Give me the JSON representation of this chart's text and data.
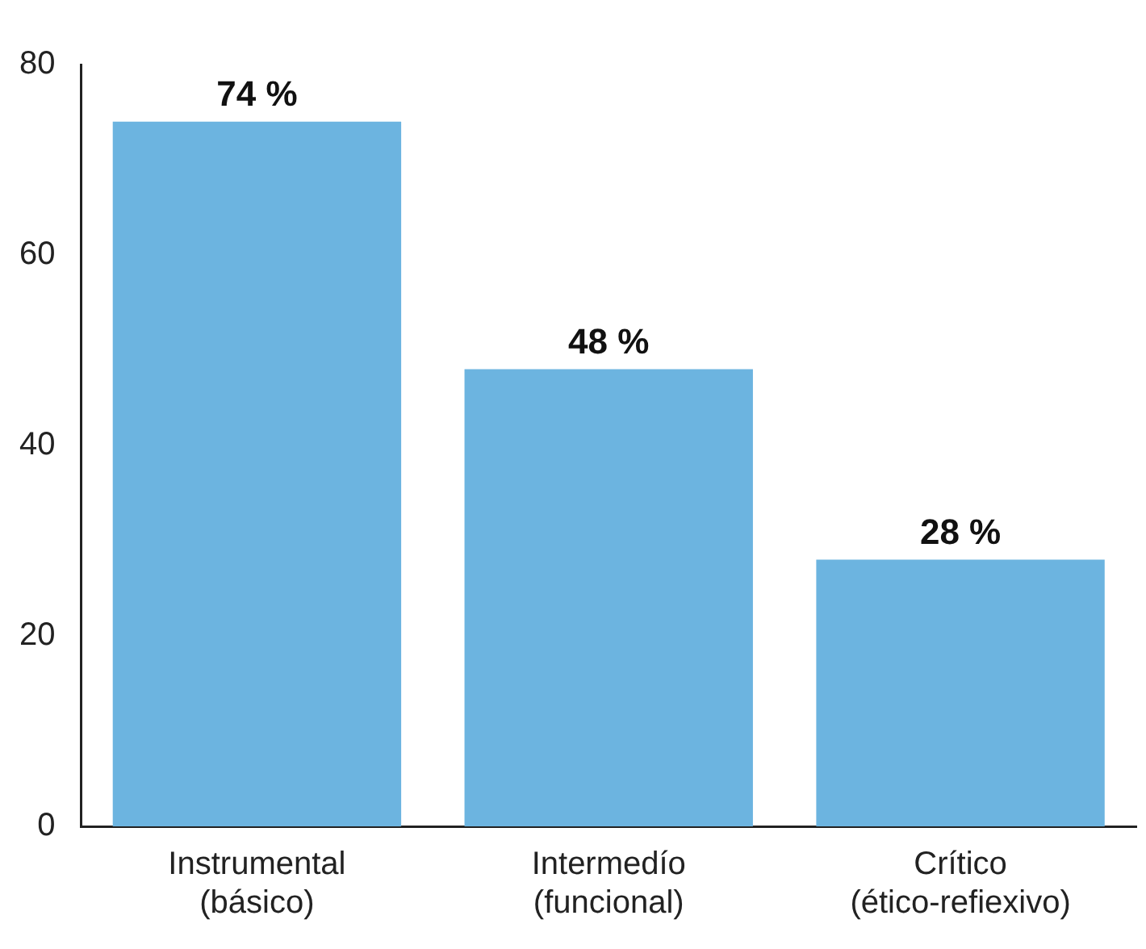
{
  "chart_data": {
    "type": "bar",
    "categories": [
      "Instrumental\n(básico)",
      "Intermedío\n(funcional)",
      "Crítico\n(ético-refiexivo)"
    ],
    "values": [
      74,
      48,
      28
    ],
    "color": "#6cb4e0",
    "value_labels": [
      "74 %",
      "48 %",
      "28 %"
    ],
    "ylim": [
      0,
      80
    ],
    "yticks": [
      0,
      20,
      40,
      60,
      80
    ],
    "grid": false,
    "legend": false
  }
}
